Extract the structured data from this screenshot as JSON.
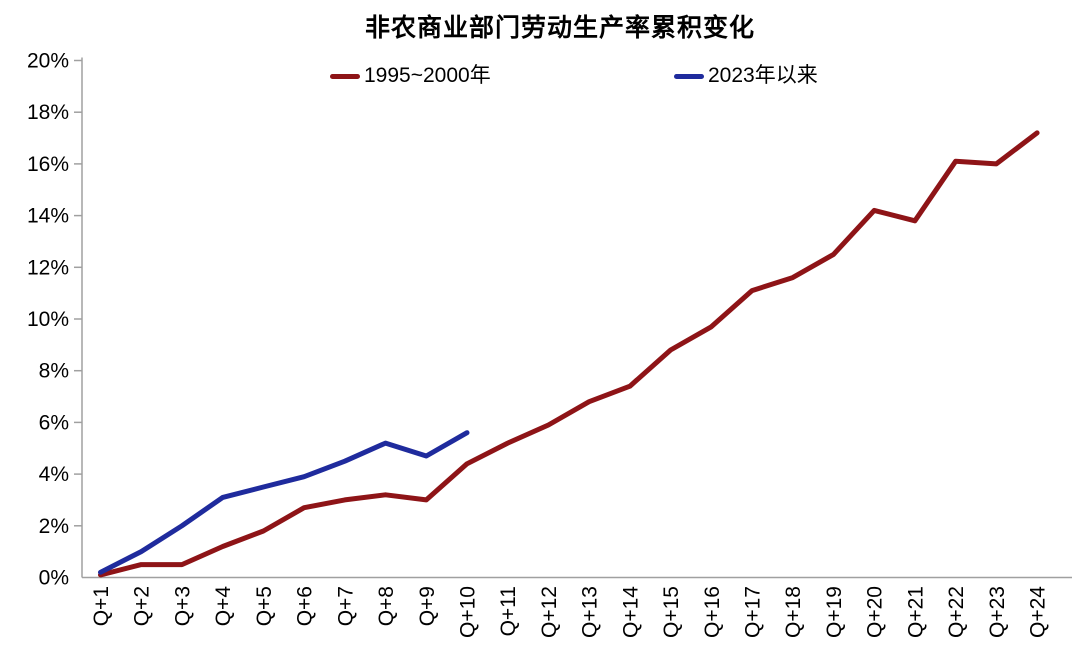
{
  "title": "非农商业部门劳动生产率累积变化",
  "axis": {
    "color": "#A0A0A0",
    "text_color": "#000000"
  },
  "chart_data": {
    "type": "line",
    "title": "非农商业部门劳动生产率累积变化",
    "categories": [
      "Q+1",
      "Q+2",
      "Q+3",
      "Q+4",
      "Q+5",
      "Q+6",
      "Q+7",
      "Q+8",
      "Q+9",
      "Q+10",
      "Q+11",
      "Q+12",
      "Q+13",
      "Q+14",
      "Q+15",
      "Q+16",
      "Q+17",
      "Q+18",
      "Q+19",
      "Q+20",
      "Q+21",
      "Q+22",
      "Q+23",
      "Q+24"
    ],
    "series": [
      {
        "name": "1995~2000年",
        "color": "#8E1417",
        "values": [
          0.1,
          0.5,
          0.5,
          1.2,
          1.8,
          2.7,
          3.0,
          3.2,
          3.0,
          4.4,
          5.2,
          5.9,
          6.8,
          7.4,
          8.8,
          9.7,
          11.1,
          11.6,
          12.5,
          14.2,
          13.8,
          16.1,
          16.0,
          17.2
        ]
      },
      {
        "name": "2023年以来",
        "color": "#1F2B9D",
        "values": [
          0.2,
          1.0,
          2.0,
          3.1,
          3.5,
          3.9,
          4.5,
          5.2,
          4.7,
          5.6
        ]
      }
    ],
    "xlabel": "",
    "ylabel": "",
    "ylim": [
      0,
      20
    ],
    "y_tick_step": 2,
    "y_tick_labels": [
      "0%",
      "2%",
      "4%",
      "6%",
      "8%",
      "10%",
      "12%",
      "14%",
      "16%",
      "18%",
      "20%"
    ],
    "grid": false,
    "legend_position": "top-center",
    "x_tick_rotation": -90
  }
}
